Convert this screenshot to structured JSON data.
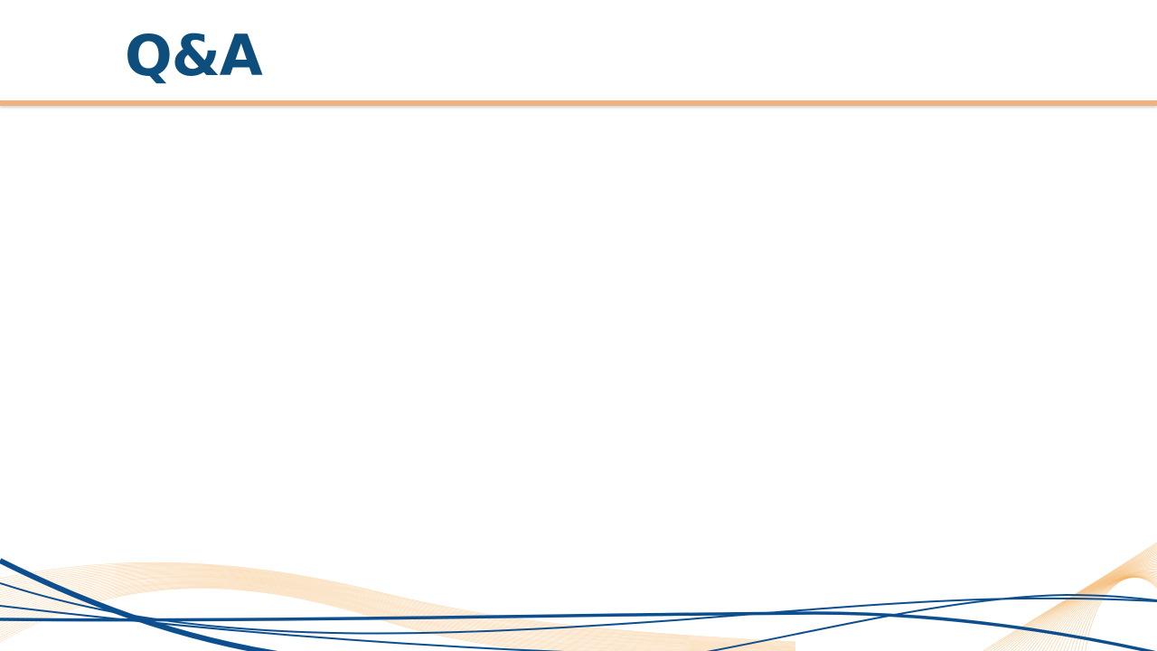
{
  "slide": {
    "title": "Q&A"
  },
  "decor": {
    "accent_color": "#f0b17c",
    "title_color": "#0d4e7c",
    "wave_blue": "#0d4e8f",
    "wave_orange": "#f09a30",
    "bottom_decoration": "wave-lines"
  }
}
